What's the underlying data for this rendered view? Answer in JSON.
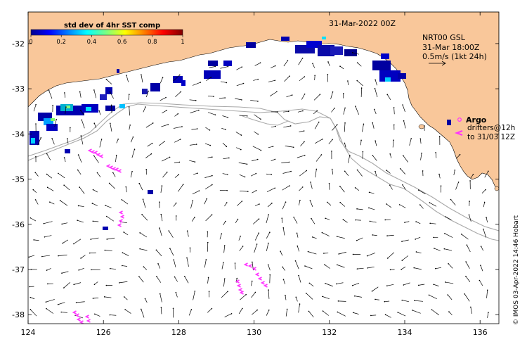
{
  "map": {
    "date_title": "31-Mar-2022 00Z",
    "colorbar": {
      "title": "std dev of 4hr SST comp",
      "ticks": [
        "0",
        "0.2",
        "0.4",
        "0.6",
        "0.8",
        "1"
      ],
      "tick_values": [
        0,
        0.2,
        0.4,
        0.6,
        0.8,
        1
      ]
    },
    "current_info": {
      "line1": "NRT00 GSL",
      "line2": "31-Mar 18:00Z",
      "line3": "0.5m/s (1kt 24h)"
    },
    "legend": {
      "argo_label": "Argo",
      "drifters_line1": "drifters@12h",
      "drifters_line2": "to 31/03 12Z"
    },
    "x_axis": {
      "ticks": [
        "124",
        "126",
        "128",
        "130",
        "132",
        "134",
        "136"
      ],
      "values": [
        124,
        126,
        128,
        130,
        132,
        134,
        136
      ],
      "range": [
        124,
        136.5
      ]
    },
    "y_axis": {
      "ticks": [
        "-32",
        "-33",
        "-34",
        "-35",
        "-36",
        "-37",
        "-38"
      ],
      "values": [
        -32,
        -33,
        -34,
        -35,
        -36,
        -37,
        -38
      ],
      "range": [
        -38.2,
        -31.3
      ]
    },
    "credit": "© IMOS 03-Apr-2022 14:46 Hobart",
    "colors": {
      "land": "#f9c79a",
      "contour": "#a8a8a8",
      "argo": "#ff33ff",
      "arrow": "#000000"
    }
  }
}
